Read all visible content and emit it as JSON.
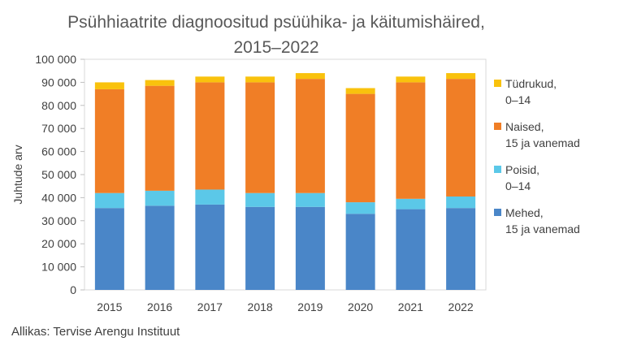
{
  "title_line1": "Psühhiaatrite diagnoositud psüühika- ja käitumishäired,",
  "title_line2": "2015–2022",
  "source": "Allikas: Tervise Arengu Instituut",
  "chart_data": {
    "type": "bar",
    "stacked": true,
    "title": "Psühhiaatrite diagnoositud psüühika- ja käitumishäired, 2015–2022",
    "ylabel": "Juhtude arv",
    "xlabel": "",
    "ylim": [
      0,
      100000
    ],
    "ytick_labels": [
      "0",
      "10 000",
      "20 000",
      "30 000",
      "40 000",
      "50 000",
      "60 000",
      "70 000",
      "80 000",
      "90 000",
      "100 000"
    ],
    "yticks": [
      0,
      10000,
      20000,
      30000,
      40000,
      50000,
      60000,
      70000,
      80000,
      90000,
      100000
    ],
    "categories": [
      "2015",
      "2016",
      "2017",
      "2018",
      "2019",
      "2020",
      "2021",
      "2022"
    ],
    "legend_position": "right",
    "grid": false,
    "series": [
      {
        "name": "Mehed,\n15 ja vanemad",
        "color": "#4a86c8",
        "values": [
          35500,
          36500,
          37000,
          36000,
          36000,
          33000,
          35000,
          35500
        ]
      },
      {
        "name": "Poisid,\n0–14",
        "color": "#5bc8e8",
        "values": [
          6500,
          6500,
          6500,
          6000,
          6000,
          5000,
          4500,
          5000
        ]
      },
      {
        "name": "Naised,\n15 ja vanemad",
        "color": "#f07e26",
        "values": [
          45000,
          45500,
          46500,
          48000,
          49500,
          47000,
          50500,
          51000
        ]
      },
      {
        "name": "Tüdrukud,\n0–14",
        "color": "#f9c20d",
        "values": [
          3000,
          2500,
          2500,
          2500,
          2500,
          2500,
          2500,
          2500
        ]
      }
    ],
    "legend_order": [
      3,
      2,
      1,
      0
    ]
  }
}
